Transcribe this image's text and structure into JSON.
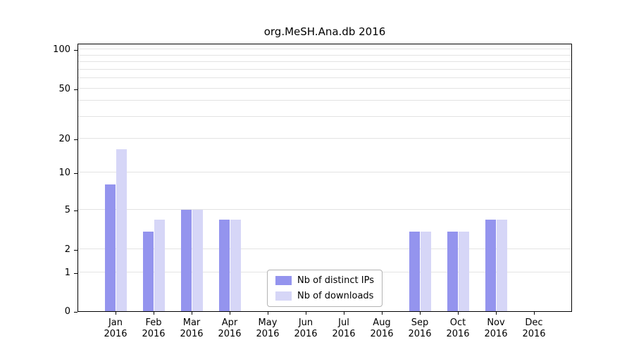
{
  "title": "org.MeSH.Ana.db 2016",
  "chart_data": {
    "type": "bar",
    "title": "org.MeSH.Ana.db 2016",
    "x_year": "2016",
    "categories": [
      "Jan",
      "Feb",
      "Mar",
      "Apr",
      "May",
      "Jun",
      "Jul",
      "Aug",
      "Sep",
      "Oct",
      "Nov",
      "Dec"
    ],
    "series": [
      {
        "name": "Nb of distinct IPs",
        "key": "distinct-ips",
        "color": "#9494ee",
        "values": [
          8,
          3,
          5,
          4,
          0,
          0,
          0,
          0,
          3,
          3,
          4,
          0
        ]
      },
      {
        "name": "Nb of downloads",
        "key": "downloads",
        "color": "#d6d6f7",
        "values": [
          16,
          4,
          5,
          4,
          0,
          0,
          0,
          0,
          3,
          3,
          4,
          0
        ]
      }
    ],
    "yticks": [
      0,
      1,
      2,
      5,
      10,
      20,
      50,
      100
    ],
    "minor_gridline_values": [
      30,
      40,
      60,
      70,
      80,
      90
    ],
    "scale": "log",
    "ylim": [
      0,
      115
    ],
    "grid": true,
    "legend_position": "lower center inside",
    "colors": {
      "axis": "#000000",
      "gridline": "#e3e3e3",
      "background": "#ffffff"
    }
  }
}
